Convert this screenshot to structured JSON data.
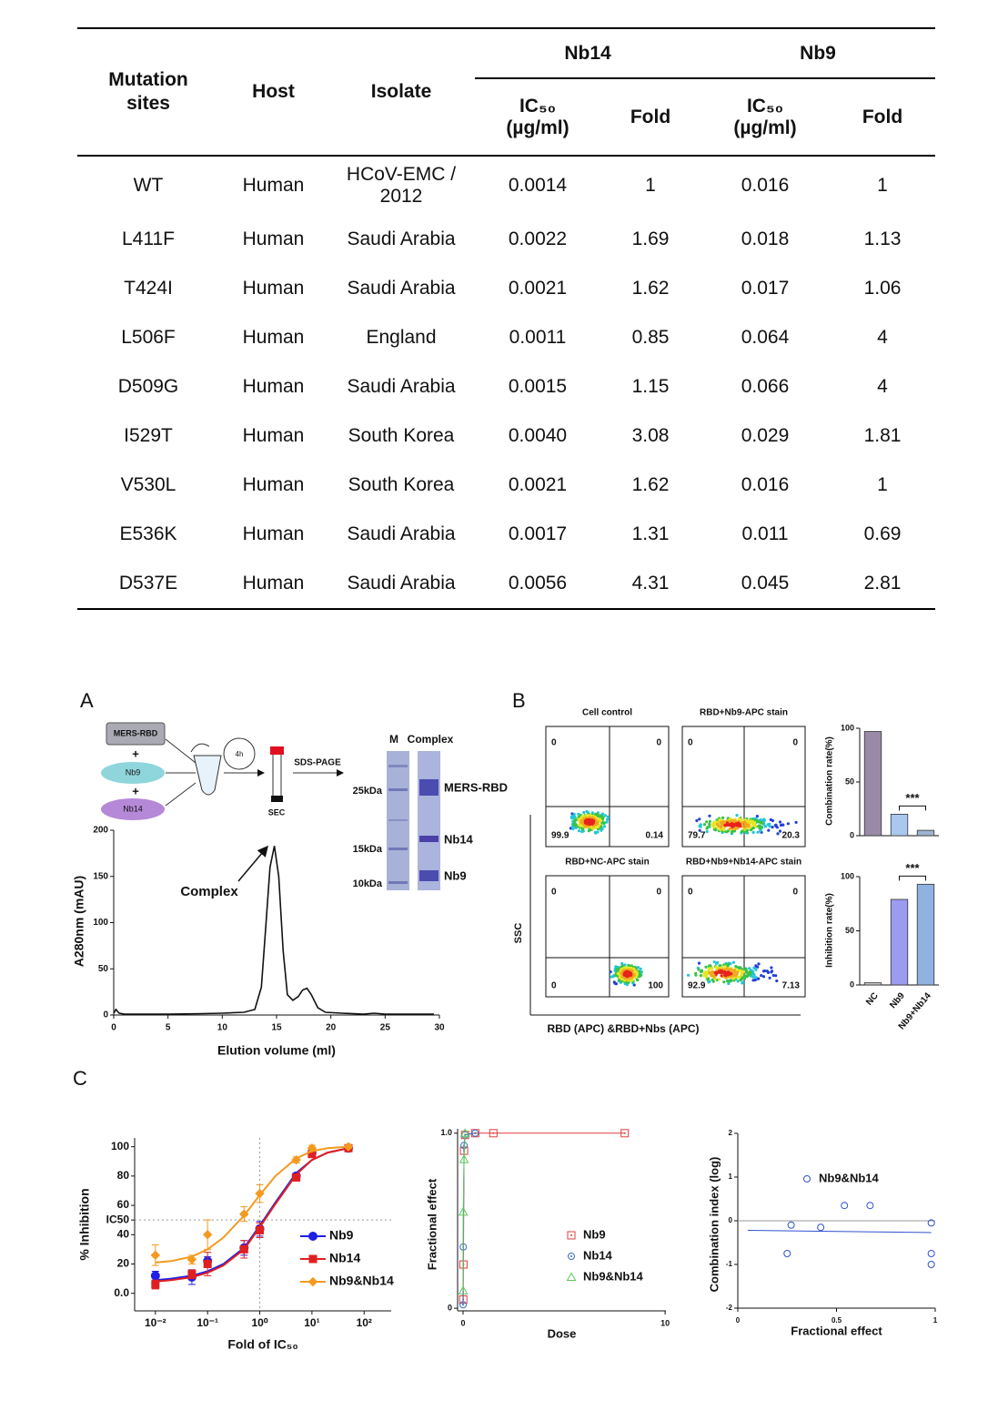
{
  "table": {
    "columns": [
      "Mutation sites",
      "Host",
      "Isolate"
    ],
    "groups": [
      "Nb14",
      "Nb9"
    ],
    "subcolumns": [
      "IC₅₀ (µg/ml)",
      "Fold",
      "IC₅₀ (µg/ml)",
      "Fold"
    ],
    "rows": [
      [
        "WT",
        "Human",
        "HCoV-EMC / 2012",
        "0.0014",
        "1",
        "0.016",
        "1"
      ],
      [
        "L411F",
        "Human",
        "Saudi Arabia",
        "0.0022",
        "1.69",
        "0.018",
        "1.13"
      ],
      [
        "T424I",
        "Human",
        "Saudi Arabia",
        "0.0021",
        "1.62",
        "0.017",
        "1.06"
      ],
      [
        "L506F",
        "Human",
        "England",
        "0.0011",
        "0.85",
        "0.064",
        "4"
      ],
      [
        "D509G",
        "Human",
        "Saudi Arabia",
        "0.0015",
        "1.15",
        "0.066",
        "4"
      ],
      [
        "I529T",
        "Human",
        "South Korea",
        "0.0040",
        "3.08",
        "0.029",
        "1.81"
      ],
      [
        "V530L",
        "Human",
        "South Korea",
        "0.0021",
        "1.62",
        "0.016",
        "1"
      ],
      [
        "E536K",
        "Human",
        "Saudi Arabia",
        "0.0017",
        "1.31",
        "0.011",
        "0.69"
      ],
      [
        "D537E",
        "Human",
        "Saudi Arabia",
        "0.0056",
        "4.31",
        "0.045",
        "2.81"
      ]
    ]
  },
  "figure": {
    "panel_labels": [
      "A",
      "B",
      "C"
    ],
    "workflow": {
      "inputs": [
        "MERS-RBD",
        "Nb9",
        "Nb14"
      ],
      "plus": "+",
      "incubation": "4h",
      "column": "SEC",
      "method": "SDS-PAGE"
    },
    "gel": {
      "lanes": [
        "M",
        "Complex"
      ],
      "markers": [
        "25kDa",
        "15kDa",
        "10kDa"
      ],
      "bands": [
        "MERS-RBD",
        "Nb14",
        "Nb9"
      ]
    },
    "flow": {
      "ylabel": "SSC",
      "xlabel": "RBD (APC) &RBD+Nbs (APC)",
      "plots": [
        {
          "title": "Cell control",
          "quadrants": [
            "0",
            "0",
            "99.9",
            "0.14"
          ]
        },
        {
          "title": "RBD+Nb9-APC stain",
          "quadrants": [
            "0",
            "0",
            "79.7",
            "20.3"
          ]
        },
        {
          "title": "RBD+NC-APC stain",
          "quadrants": [
            "0",
            "0",
            "0",
            "100"
          ]
        },
        {
          "title": "RBD+Nb9+Nb14-APC stain",
          "quadrants": [
            "0",
            "0",
            "92.9",
            "7.13"
          ]
        }
      ]
    }
  },
  "chart_data": [
    {
      "type": "line",
      "xlabel": "Elution volume (ml)",
      "ylabel": "A280nm (mAU)",
      "annotation": "Complex",
      "color": "#111111",
      "x": [
        0,
        0.2,
        0.5,
        1,
        2,
        5,
        8,
        10,
        12,
        13,
        13.6,
        14,
        14.4,
        14.8,
        15.2,
        15.6,
        16,
        16.5,
        17,
        17.4,
        17.8,
        18.2,
        18.8,
        19.5,
        21,
        23,
        24,
        25,
        27,
        29.5
      ],
      "values": [
        2,
        6,
        2,
        1,
        1,
        1,
        1.5,
        2,
        3,
        6,
        30,
        95,
        160,
        183,
        150,
        70,
        22,
        16,
        20,
        27,
        29,
        22,
        8,
        3,
        2,
        1,
        2,
        1,
        1,
        1
      ],
      "xlim": [
        0,
        30
      ],
      "xticks": [
        0,
        5,
        10,
        15,
        20,
        25,
        30
      ],
      "ylim": [
        0,
        200
      ],
      "yticks": [
        0,
        50,
        100,
        150,
        200
      ]
    },
    {
      "type": "bar",
      "ylabel": "Combination rate(%)",
      "annotation": "***",
      "categories": [
        null,
        null,
        null
      ],
      "values": [
        97,
        20,
        5
      ],
      "colors": [
        "#9a8aa8",
        "#aac8ee",
        "#9db3cf"
      ],
      "ylim": [
        0,
        100
      ],
      "yticks": [
        0,
        50,
        100
      ]
    },
    {
      "type": "bar",
      "ylabel": "Inhibition rate(%)",
      "annotation": "***",
      "categories": [
        "NC",
        "Nb9",
        "Nb9+Nb14"
      ],
      "values": [
        2,
        79,
        93
      ],
      "colors": [
        "#c8c8c8",
        "#9b9bf0",
        "#8fb2e0"
      ],
      "ylim": [
        0,
        100
      ],
      "yticks": [
        0,
        50,
        100
      ]
    },
    {
      "type": "scatter",
      "xscale": "log",
      "filled": true,
      "xlabel": "Fold of IC₅₀",
      "ylabel": "% Inhibition",
      "xlim": [
        0.004,
        330
      ],
      "xticks": [
        {
          "value": 0.01,
          "label": "10⁻²"
        },
        {
          "value": 0.1,
          "label": "10⁻¹"
        },
        {
          "value": 1,
          "label": "10⁰"
        },
        {
          "value": 10,
          "label": "10¹"
        },
        {
          "value": 100,
          "label": "10²"
        }
      ],
      "ylim": [
        -12,
        106
      ],
      "yticks": [
        {
          "value": 0,
          "label": "0.0"
        },
        20,
        40,
        {
          "value": 50,
          "label": "IC50"
        },
        60,
        80,
        100
      ],
      "reference_x": 1,
      "reference_y": 50,
      "x": [
        0.01,
        0.05,
        0.1,
        0.5,
        1,
        5,
        10,
        50
      ],
      "fit_x": [
        0.01,
        0.02,
        0.05,
        0.1,
        0.2,
        0.5,
        1,
        2,
        5,
        10,
        20,
        50
      ],
      "series": [
        {
          "name": "Nb9",
          "color": "#1f1fe6",
          "marker": "circle",
          "values": [
            12,
            11,
            22,
            31,
            44,
            80,
            96,
            99
          ],
          "errors": [
            3,
            5,
            3,
            5,
            5,
            2,
            2,
            2
          ],
          "fit_values": [
            9,
            10,
            12,
            15,
            20,
            31,
            46,
            62,
            82,
            91,
            96,
            99
          ]
        },
        {
          "name": "Nb14",
          "color": "#e02020",
          "marker": "square",
          "values": [
            6,
            13,
            20,
            30,
            43,
            79,
            95,
            99
          ],
          "errors": [
            3,
            3,
            8,
            6,
            5,
            2,
            2,
            2
          ],
          "fit_values": [
            8,
            9,
            11,
            14,
            19,
            30,
            45,
            61,
            81,
            91,
            96,
            99
          ]
        },
        {
          "name": "Nb9&Nb14",
          "color": "#f39a1f",
          "marker": "diamond",
          "values": [
            26,
            23,
            40,
            54,
            68,
            91,
            99,
            100
          ],
          "errors": [
            7,
            3,
            10,
            5,
            6,
            2,
            2,
            1
          ],
          "fit_values": [
            21,
            22,
            25,
            30,
            38,
            53,
            67,
            80,
            92,
            97,
            99,
            100
          ]
        }
      ]
    },
    {
      "type": "scatter",
      "filled": false,
      "lines": true,
      "xlabel": "Dose",
      "ylabel": "Fractional effect",
      "xlim": [
        -0.27,
        10.04
      ],
      "xticks": [
        0,
        10
      ],
      "ylim": [
        -0.015,
        1.025
      ],
      "yticks": [
        0,
        {
          "value": 1,
          "label": "1.0"
        }
      ],
      "series": [
        {
          "name": "Nb9",
          "color": "#e03c3c",
          "marker": "square-dot",
          "x": [
            0.01,
            0.02,
            0.05,
            0.1,
            0.6,
            1.5,
            8
          ],
          "values": [
            0.05,
            0.25,
            0.9,
            0.99,
            1,
            1,
            1
          ]
        },
        {
          "name": "Nb14",
          "color": "#3a6cc0",
          "marker": "circle-dot",
          "x": [
            0.002,
            0.01,
            0.05,
            0.1,
            0.6
          ],
          "values": [
            0.02,
            0.35,
            0.93,
            0.99,
            1
          ]
        },
        {
          "name": "Nb9&Nb14",
          "color": "#5cc85c",
          "marker": "triangle",
          "x": [
            0.005,
            0.01,
            0.05,
            0.1
          ],
          "values": [
            0.1,
            0.55,
            0.85,
            1
          ]
        }
      ]
    },
    {
      "type": "scatter",
      "filled": false,
      "xlabel": "Fractional effect",
      "ylabel": "Combination index (log)",
      "xlim": [
        0,
        1
      ],
      "xticks": [
        0,
        0.5,
        1
      ],
      "ylim": [
        -2,
        2
      ],
      "yticks": [
        -2,
        -1,
        0,
        1,
        2
      ],
      "reference_y": 0,
      "trend_x": [
        0.05,
        0.98
      ],
      "trend_values": [
        -0.22,
        -0.27
      ],
      "series": [
        {
          "name": "Nb9&Nb14",
          "color": "#3050d0",
          "marker": "circle",
          "x": [
            0.25,
            0.27,
            0.42,
            0.54,
            0.67,
            0.98,
            0.98,
            0.98
          ],
          "values": [
            -0.75,
            -0.1,
            -0.15,
            0.35,
            0.35,
            -0.05,
            -0.75,
            -1.0
          ]
        }
      ]
    }
  ]
}
